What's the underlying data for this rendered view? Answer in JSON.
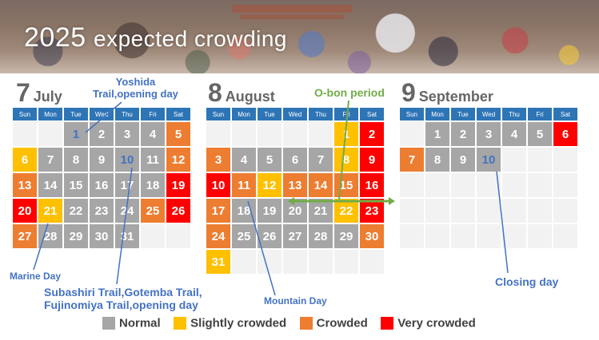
{
  "banner": {
    "title_year": "2025",
    "title_rest": "expected crowding"
  },
  "months": [
    {
      "num": "7",
      "name": "July"
    },
    {
      "num": "8",
      "name": "August"
    },
    {
      "num": "9",
      "name": "September"
    }
  ],
  "weekdays": [
    "Sun",
    "Mon",
    "Tue",
    "Wed",
    "Thu",
    "Fri",
    "Sat"
  ],
  "calendars": [
    {
      "rows": [
        [
          [
            "",
            "empty"
          ],
          [
            "",
            "empty"
          ],
          [
            "1",
            "normal",
            "hl"
          ],
          [
            "2",
            "normal"
          ],
          [
            "3",
            "normal"
          ],
          [
            "4",
            "normal"
          ],
          [
            "5",
            "crowded"
          ]
        ],
        [
          [
            "6",
            "slight"
          ],
          [
            "7",
            "normal"
          ],
          [
            "8",
            "normal"
          ],
          [
            "9",
            "normal"
          ],
          [
            "10",
            "normal",
            "hl"
          ],
          [
            "11",
            "normal"
          ],
          [
            "12",
            "crowded"
          ]
        ],
        [
          [
            "13",
            "crowded"
          ],
          [
            "14",
            "normal"
          ],
          [
            "15",
            "normal"
          ],
          [
            "16",
            "normal"
          ],
          [
            "17",
            "normal"
          ],
          [
            "18",
            "normal"
          ],
          [
            "19",
            "very"
          ]
        ],
        [
          [
            "20",
            "very"
          ],
          [
            "21",
            "slight"
          ],
          [
            "22",
            "normal"
          ],
          [
            "23",
            "normal"
          ],
          [
            "24",
            "normal"
          ],
          [
            "25",
            "crowded"
          ],
          [
            "26",
            "very"
          ]
        ],
        [
          [
            "27",
            "crowded"
          ],
          [
            "28",
            "normal"
          ],
          [
            "29",
            "normal"
          ],
          [
            "30",
            "normal"
          ],
          [
            "31",
            "normal"
          ],
          [
            "",
            "empty"
          ],
          [
            "",
            "empty"
          ]
        ]
      ]
    },
    {
      "rows": [
        [
          [
            "",
            "empty"
          ],
          [
            "",
            "empty"
          ],
          [
            "",
            "empty"
          ],
          [
            "",
            "empty"
          ],
          [
            "",
            "empty"
          ],
          [
            "1",
            "slight"
          ],
          [
            "2",
            "very"
          ]
        ],
        [
          [
            "3",
            "crowded"
          ],
          [
            "4",
            "normal"
          ],
          [
            "5",
            "normal"
          ],
          [
            "6",
            "normal"
          ],
          [
            "7",
            "normal"
          ],
          [
            "8",
            "slight"
          ],
          [
            "9",
            "very"
          ]
        ],
        [
          [
            "10",
            "very"
          ],
          [
            "11",
            "crowded"
          ],
          [
            "12",
            "slight"
          ],
          [
            "13",
            "crowded"
          ],
          [
            "14",
            "crowded"
          ],
          [
            "15",
            "crowded"
          ],
          [
            "16",
            "very"
          ]
        ],
        [
          [
            "17",
            "crowded"
          ],
          [
            "18",
            "normal"
          ],
          [
            "19",
            "normal"
          ],
          [
            "20",
            "normal"
          ],
          [
            "21",
            "normal"
          ],
          [
            "22",
            "slight"
          ],
          [
            "23",
            "very"
          ]
        ],
        [
          [
            "24",
            "crowded"
          ],
          [
            "25",
            "normal"
          ],
          [
            "26",
            "normal"
          ],
          [
            "27",
            "normal"
          ],
          [
            "28",
            "normal"
          ],
          [
            "29",
            "normal"
          ],
          [
            "30",
            "crowded"
          ]
        ],
        [
          [
            "31",
            "slight"
          ],
          [
            "",
            "empty"
          ],
          [
            "",
            "empty"
          ],
          [
            "",
            "empty"
          ],
          [
            "",
            "empty"
          ],
          [
            "",
            "empty"
          ],
          [
            "",
            "empty"
          ]
        ]
      ]
    },
    {
      "rows": [
        [
          [
            "",
            "empty"
          ],
          [
            "1",
            "normal"
          ],
          [
            "2",
            "normal"
          ],
          [
            "3",
            "normal"
          ],
          [
            "4",
            "normal"
          ],
          [
            "5",
            "normal"
          ],
          [
            "6",
            "very"
          ]
        ],
        [
          [
            "7",
            "crowded"
          ],
          [
            "8",
            "normal"
          ],
          [
            "9",
            "normal"
          ],
          [
            "10",
            "normal",
            "hl"
          ],
          [
            "",
            "empty"
          ],
          [
            "",
            "empty"
          ],
          [
            "",
            "empty"
          ]
        ],
        [
          [
            "",
            "empty"
          ],
          [
            "",
            "empty"
          ],
          [
            "",
            "empty"
          ],
          [
            "",
            "empty"
          ],
          [
            "",
            "empty"
          ],
          [
            "",
            "empty"
          ],
          [
            "",
            "empty"
          ]
        ],
        [
          [
            "",
            "empty"
          ],
          [
            "",
            "empty"
          ],
          [
            "",
            "empty"
          ],
          [
            "",
            "empty"
          ],
          [
            "",
            "empty"
          ],
          [
            "",
            "empty"
          ],
          [
            "",
            "empty"
          ]
        ],
        [
          [
            "",
            "empty"
          ],
          [
            "",
            "empty"
          ],
          [
            "",
            "empty"
          ],
          [
            "",
            "empty"
          ],
          [
            "",
            "empty"
          ],
          [
            "",
            "empty"
          ],
          [
            "",
            "empty"
          ]
        ]
      ]
    }
  ],
  "annotations": {
    "yoshida_line1": "Yoshida",
    "yoshida_line2": "Trail,opening day",
    "obon": "O-bon period",
    "marine": "Marine Day",
    "subashiri_line1": "Subashiri Trail,Gotemba Trail,",
    "subashiri_line2": "Fujinomiya Trail,opening day",
    "mountain": "Mountain Day",
    "closing": "Closing day"
  },
  "legend": [
    {
      "label": "Normal",
      "color": "#a6a6a6"
    },
    {
      "label": "Slightly crowded",
      "color": "#ffc000"
    },
    {
      "label": "Crowded",
      "color": "#ed7d31"
    },
    {
      "label": "Very crowded",
      "color": "#ff0000"
    }
  ],
  "colors": {
    "normal": "#a6a6a6",
    "slight": "#ffc000",
    "crowded": "#ed7d31",
    "very": "#ff0000",
    "header_blue": "#2e75b6",
    "annotation_blue": "#4472c4",
    "annotation_green": "#70ad47"
  }
}
